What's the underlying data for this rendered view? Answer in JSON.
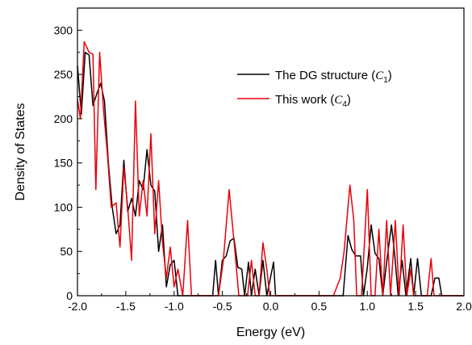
{
  "chart_data": {
    "type": "line",
    "xlabel": "Energy (eV)",
    "ylabel": "Density of States",
    "xlim": [
      -2.0,
      2.0
    ],
    "ylim": [
      0,
      325
    ],
    "xticks": [
      -2.0,
      -1.5,
      -1.0,
      -0.5,
      0.0,
      0.5,
      1.0,
      1.5,
      2.0
    ],
    "xtick_labels": [
      "-2.0",
      "-1.5",
      "-1.0",
      "-0.5",
      "0.0",
      "0.5",
      "1.0",
      "1.5",
      "2.0"
    ],
    "yticks": [
      0,
      50,
      100,
      150,
      200,
      250,
      300
    ],
    "ytick_labels": [
      "0",
      "50",
      "100",
      "150",
      "200",
      "250",
      "300"
    ],
    "grid": false,
    "legend_position": "top-right",
    "series": [
      {
        "name": "The DG structure (C1)",
        "legend_text": "The DG structure (",
        "legend_symbol": "C",
        "legend_sub": "1",
        "legend_close": ")",
        "color": "#000000",
        "points": [
          [
            -2.0,
            260
          ],
          [
            -1.96,
            205
          ],
          [
            -1.92,
            275
          ],
          [
            -1.88,
            272
          ],
          [
            -1.84,
            215
          ],
          [
            -1.8,
            228
          ],
          [
            -1.76,
            240
          ],
          [
            -1.72,
            220
          ],
          [
            -1.68,
            150
          ],
          [
            -1.64,
            100
          ],
          [
            -1.6,
            70
          ],
          [
            -1.56,
            80
          ],
          [
            -1.52,
            153
          ],
          [
            -1.48,
            95
          ],
          [
            -1.44,
            110
          ],
          [
            -1.4,
            90
          ],
          [
            -1.36,
            130
          ],
          [
            -1.32,
            120
          ],
          [
            -1.28,
            165
          ],
          [
            -1.24,
            125
          ],
          [
            -1.2,
            118
          ],
          [
            -1.16,
            50
          ],
          [
            -1.12,
            80
          ],
          [
            -1.08,
            10
          ],
          [
            -1.04,
            35
          ],
          [
            -1.0,
            40
          ],
          [
            -0.96,
            0
          ],
          [
            -0.6,
            0
          ],
          [
            -0.57,
            40
          ],
          [
            -0.54,
            0
          ],
          [
            -0.5,
            40
          ],
          [
            -0.46,
            45
          ],
          [
            -0.42,
            62
          ],
          [
            -0.38,
            65
          ],
          [
            -0.34,
            32
          ],
          [
            -0.3,
            30
          ],
          [
            -0.27,
            0
          ],
          [
            -0.23,
            38
          ],
          [
            -0.2,
            0
          ],
          [
            -0.16,
            30
          ],
          [
            -0.12,
            0
          ],
          [
            -0.08,
            40
          ],
          [
            -0.04,
            0
          ],
          [
            0.03,
            38
          ],
          [
            0.05,
            0
          ],
          [
            0.75,
            0
          ],
          [
            0.8,
            68
          ],
          [
            0.84,
            52
          ],
          [
            0.88,
            45
          ],
          [
            0.93,
            45
          ],
          [
            0.96,
            0
          ],
          [
            1.0,
            32
          ],
          [
            1.04,
            80
          ],
          [
            1.08,
            48
          ],
          [
            1.12,
            42
          ],
          [
            1.16,
            0
          ],
          [
            1.2,
            38
          ],
          [
            1.25,
            80
          ],
          [
            1.28,
            50
          ],
          [
            1.32,
            0
          ],
          [
            1.36,
            40
          ],
          [
            1.4,
            0
          ],
          [
            1.45,
            42
          ],
          [
            1.48,
            0
          ],
          [
            1.52,
            42
          ],
          [
            1.56,
            0
          ],
          [
            1.66,
            0
          ],
          [
            1.7,
            20
          ],
          [
            1.74,
            20
          ],
          [
            1.77,
            0
          ],
          [
            2.0,
            0
          ]
        ]
      },
      {
        "name": "This work (C4)",
        "legend_text": "This work (",
        "legend_symbol": "C",
        "legend_sub": "4",
        "legend_close": ")",
        "color": "#e8000b",
        "points": [
          [
            -2.0,
            222
          ],
          [
            -1.97,
            200
          ],
          [
            -1.93,
            287
          ],
          [
            -1.88,
            275
          ],
          [
            -1.84,
            273
          ],
          [
            -1.81,
            120
          ],
          [
            -1.77,
            275
          ],
          [
            -1.73,
            210
          ],
          [
            -1.69,
            160
          ],
          [
            -1.65,
            100
          ],
          [
            -1.6,
            105
          ],
          [
            -1.56,
            55
          ],
          [
            -1.52,
            145
          ],
          [
            -1.48,
            100
          ],
          [
            -1.44,
            40
          ],
          [
            -1.4,
            220
          ],
          [
            -1.36,
            90
          ],
          [
            -1.32,
            130
          ],
          [
            -1.28,
            90
          ],
          [
            -1.24,
            183
          ],
          [
            -1.2,
            70
          ],
          [
            -1.16,
            130
          ],
          [
            -1.12,
            60
          ],
          [
            -1.08,
            20
          ],
          [
            -1.04,
            55
          ],
          [
            -1.0,
            10
          ],
          [
            -0.96,
            30
          ],
          [
            -0.91,
            0
          ],
          [
            -0.86,
            85
          ],
          [
            -0.82,
            0
          ],
          [
            -0.54,
            0
          ],
          [
            -0.49,
            40
          ],
          [
            -0.43,
            120
          ],
          [
            -0.37,
            50
          ],
          [
            -0.33,
            0
          ],
          [
            -0.24,
            0
          ],
          [
            -0.2,
            40
          ],
          [
            -0.16,
            0
          ],
          [
            -0.12,
            0
          ],
          [
            -0.08,
            60
          ],
          [
            -0.04,
            30
          ],
          [
            -0.01,
            0
          ],
          [
            0.65,
            0
          ],
          [
            0.72,
            20
          ],
          [
            0.76,
            50
          ],
          [
            0.82,
            125
          ],
          [
            0.86,
            85
          ],
          [
            0.89,
            0
          ],
          [
            0.94,
            0
          ],
          [
            1.0,
            120
          ],
          [
            1.04,
            0
          ],
          [
            1.08,
            0
          ],
          [
            1.12,
            75
          ],
          [
            1.16,
            0
          ],
          [
            1.2,
            85
          ],
          [
            1.24,
            0
          ],
          [
            1.29,
            85
          ],
          [
            1.33,
            0
          ],
          [
            1.37,
            80
          ],
          [
            1.41,
            0
          ],
          [
            1.45,
            30
          ],
          [
            1.48,
            0
          ],
          [
            1.52,
            0
          ],
          [
            1.56,
            0
          ],
          [
            1.62,
            0
          ],
          [
            1.66,
            42
          ],
          [
            1.69,
            0
          ],
          [
            2.0,
            0
          ]
        ]
      }
    ]
  }
}
